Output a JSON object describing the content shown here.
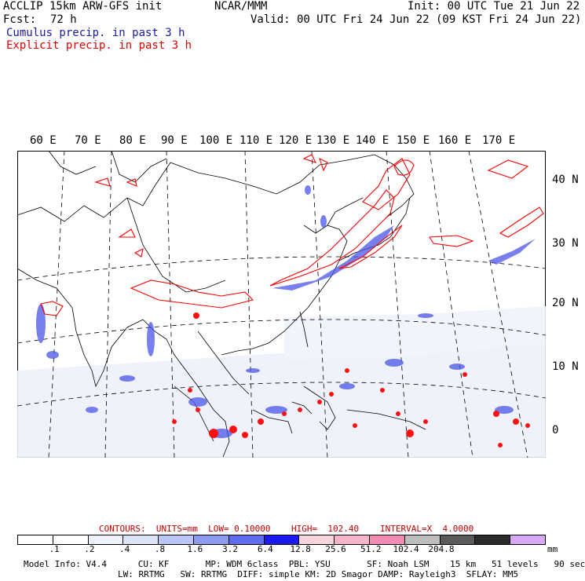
{
  "header": {
    "model_title": "ACCLIP 15km ARW-GFS init",
    "org": "NCAR/MMM",
    "init_time": "Init: 00 UTC Tue 21 Jun 22",
    "forecast_label": "Fcst:",
    "forecast_hours": "72 h",
    "valid_time": "Valid: 00 UTC Fri 24 Jun 22 (09 KST Fri 24 Jun 22)",
    "cumulus_label": "Cumulus precip. in past 3 h",
    "explicit_label": "Explicit precip. in past 3 h"
  },
  "map": {
    "lon_labels": [
      "60 E",
      "70 E",
      "80 E",
      "90 E",
      "100 E",
      "110 E",
      "120 E",
      "130 E",
      "140 E",
      "150 E",
      "160 E",
      "170 E"
    ],
    "lat_labels": [
      "40 N",
      "30 N",
      "20 N",
      "10 N",
      "0"
    ]
  },
  "contours": {
    "units_text": "CONTOURS:  UNITS=mm  LOW= 0.10000",
    "high_text": "HIGH=  102.40",
    "interval_text": "INTERVAL=X  4.0000"
  },
  "colorbar": {
    "tick_labels": [
      ".1",
      ".2",
      ".4",
      ".8",
      "1.6",
      "3.2",
      "6.4",
      "12.8",
      "25.6",
      "51.2",
      "102.4",
      "204.8"
    ],
    "units": "mm",
    "colors": [
      "#ffffff",
      "#ffffff",
      "#eef2fa",
      "#dde4f8",
      "#bcc6f6",
      "#8f9bf0",
      "#5f6ef0",
      "#1a1af0",
      "#f8d4dc",
      "#f5b4c8",
      "#f08cb4",
      "#bdbdbd",
      "#5a5a5a",
      "#2a2a2a",
      "#d6a8f6"
    ]
  },
  "footer": {
    "line1": "Model Info: V4.4      CU: KF       MP: WDM 6class  PBL: YSU       SF: Noah LSM    15 km   51 levels   90 sec",
    "line2": "LW: RRTMG   SW: RRTMG  DIFF: simple KM: 2D Smagor DAMP: Rayleigh3  SFLAY: MM5"
  },
  "colors": {
    "cumulus": "#1a1aff",
    "explicit": "#ff0000"
  }
}
